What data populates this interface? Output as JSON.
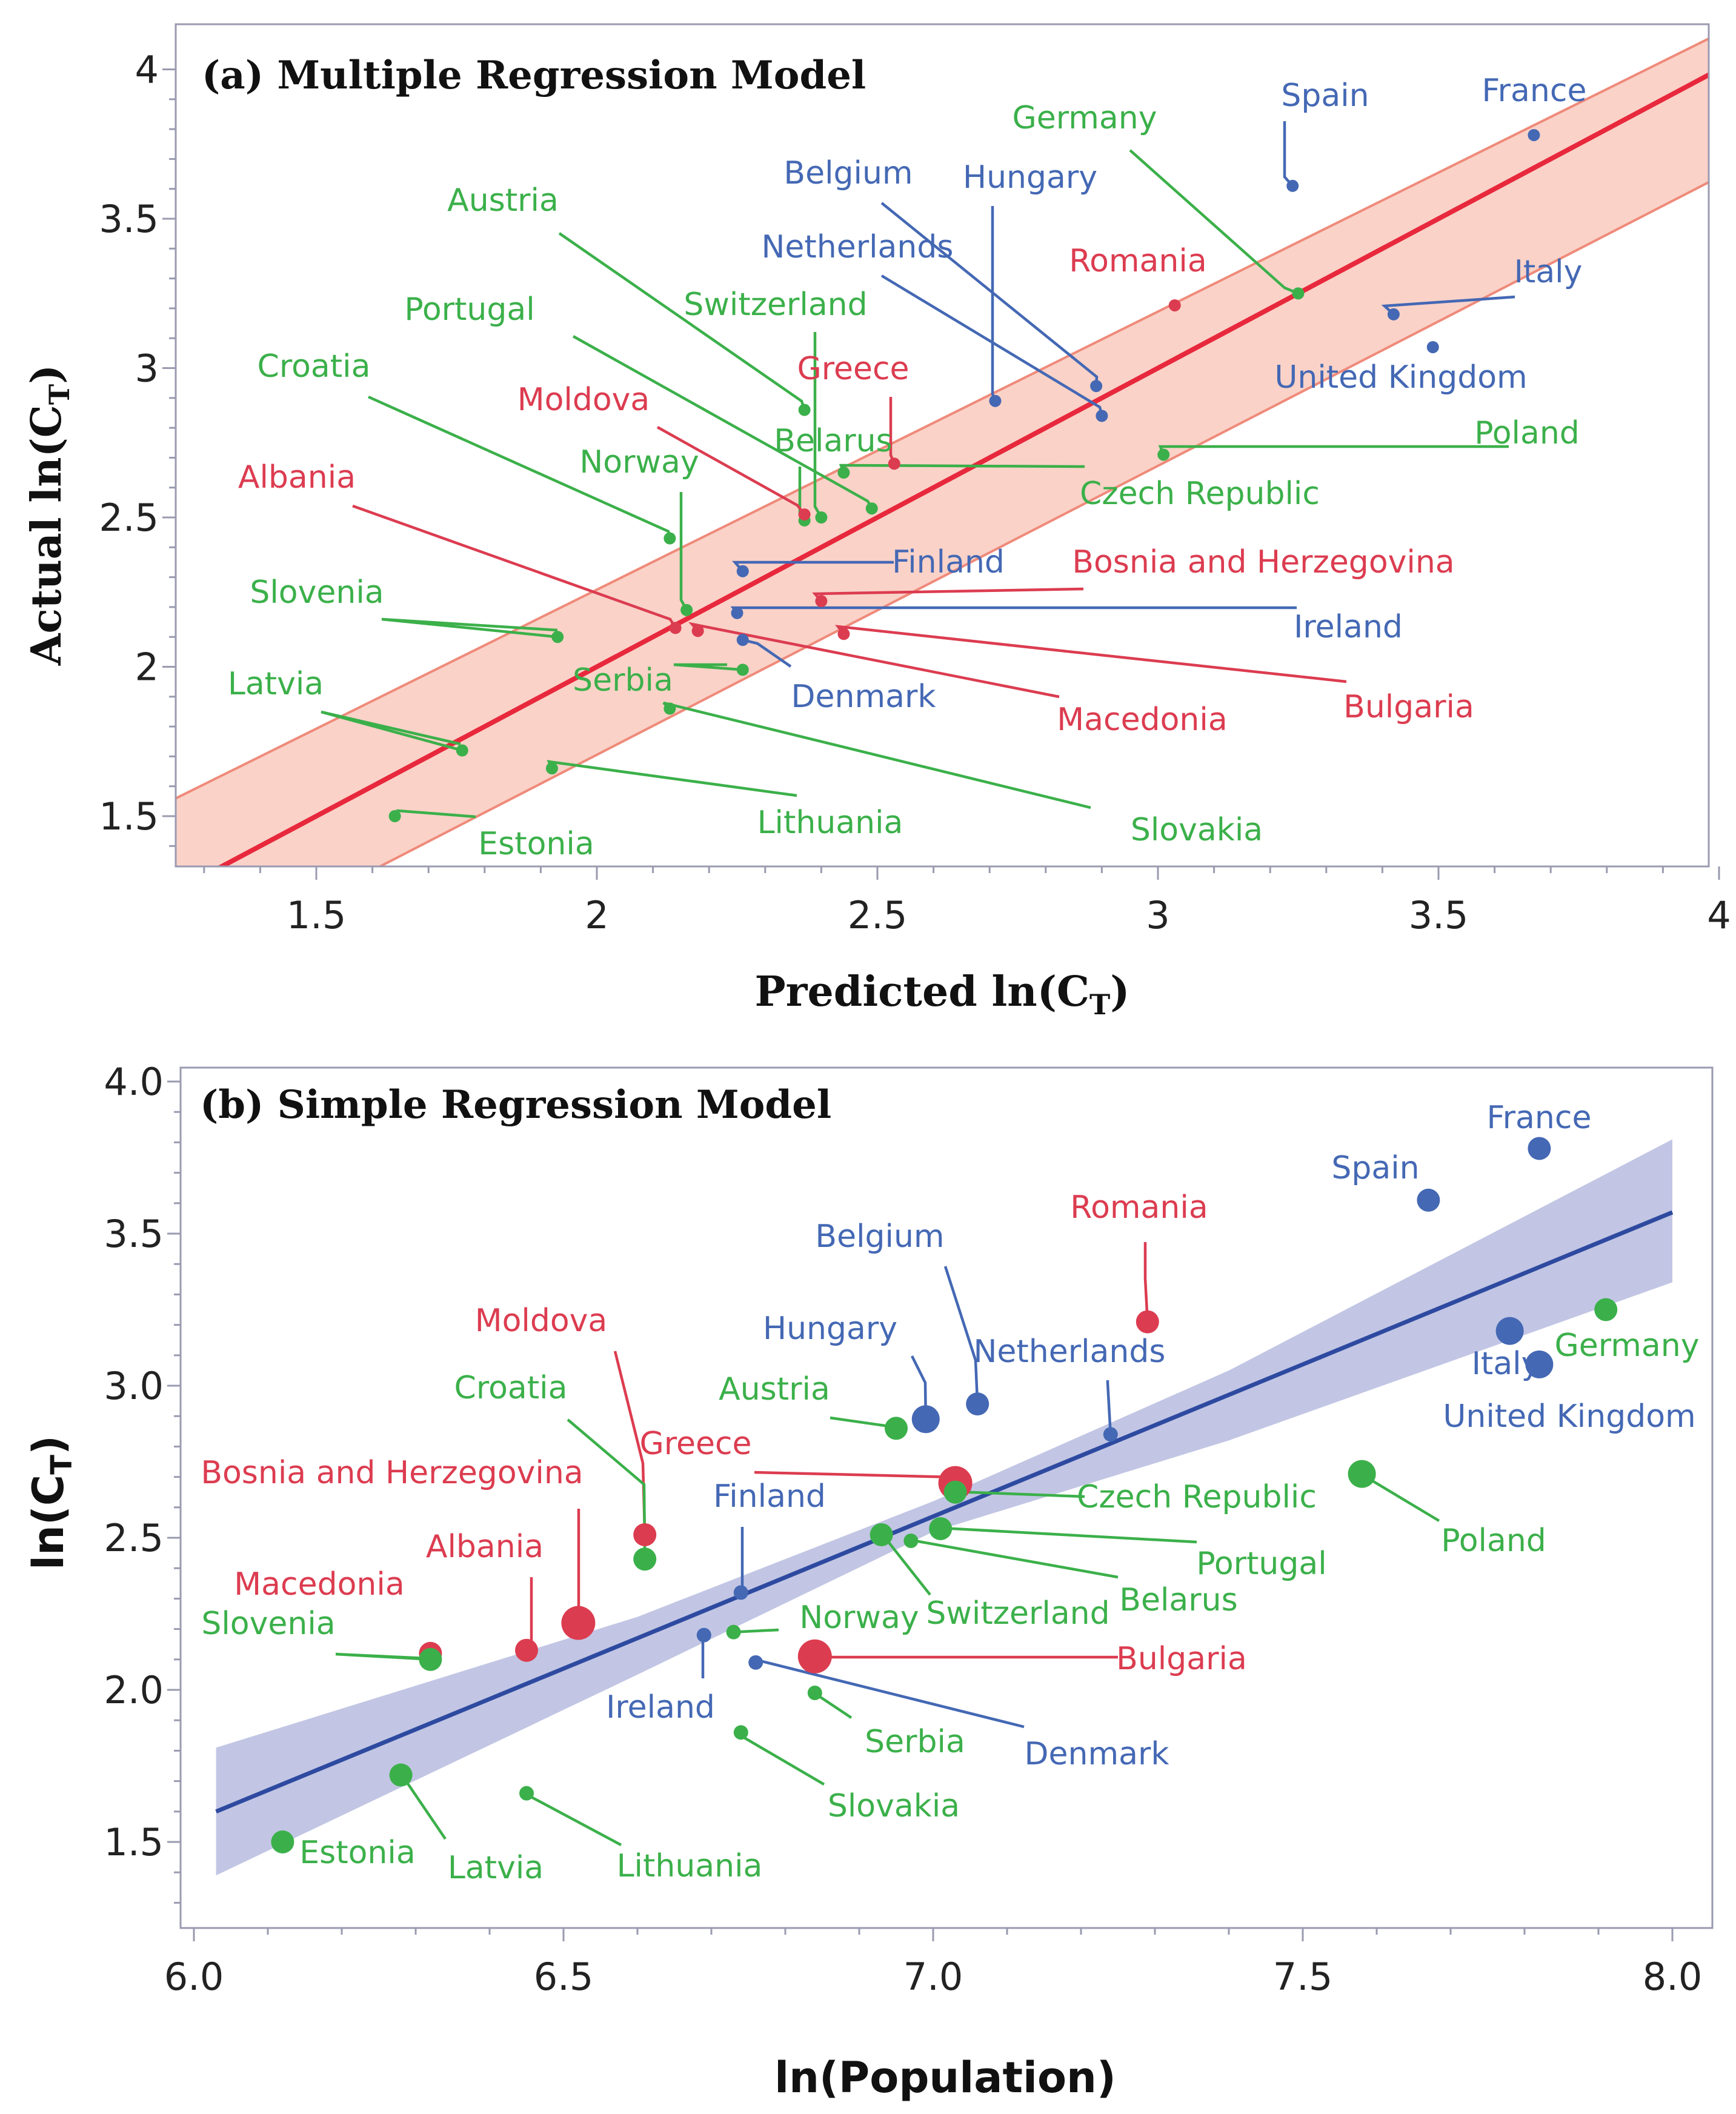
{
  "colors": {
    "blue": "#4468b4",
    "green": "#3bb04a",
    "red": "#dc3c50",
    "fit_a": "#e8283c",
    "band_a_fill": "#fad2c8",
    "band_a_edge": "#ef8a7a",
    "fit_b": "#2e4aa0",
    "band_b_fill": "#c2c6e4"
  },
  "chart_data": [
    {
      "type": "scatter",
      "title": "(a) Multiple Regression Model",
      "xlabel": "Predicted ln(CT)",
      "ylabel": "Actual ln(CT)",
      "xlim": [
        1.25,
        4.0
      ],
      "ylim": [
        1.3,
        4.1
      ],
      "xticks": [
        "1.5",
        "2",
        "2.5",
        "3",
        "3.5",
        "4"
      ],
      "yticks": [
        "1.5",
        "2",
        "2.5",
        "3",
        "3.5",
        "4"
      ],
      "fit": {
        "intercept": 0.0,
        "slope": 1.0
      },
      "band": {
        "upper": [
          [
            1.25,
            1.56
          ],
          [
            4.0,
            4.12
          ]
        ],
        "lower": [
          [
            1.25,
            0.98
          ],
          [
            4.0,
            3.64
          ]
        ]
      },
      "points": [
        {
          "name": "France",
          "color": "blue",
          "x": 3.67,
          "y": 3.78
        },
        {
          "name": "Spain",
          "color": "blue",
          "x": 3.24,
          "y": 3.61
        },
        {
          "name": "Germany",
          "color": "green",
          "x": 3.25,
          "y": 3.25
        },
        {
          "name": "Belgium",
          "color": "blue",
          "x": 2.89,
          "y": 2.94
        },
        {
          "name": "Hungary",
          "color": "blue",
          "x": 2.71,
          "y": 2.89
        },
        {
          "name": "Netherlands",
          "color": "blue",
          "x": 2.9,
          "y": 2.84
        },
        {
          "name": "Romania",
          "color": "red",
          "x": 3.03,
          "y": 3.21
        },
        {
          "name": "Italy",
          "color": "blue",
          "x": 3.42,
          "y": 3.18
        },
        {
          "name": "United Kingdom",
          "color": "blue",
          "x": 3.49,
          "y": 3.07
        },
        {
          "name": "Poland",
          "color": "green",
          "x": 3.01,
          "y": 2.71
        },
        {
          "name": "Austria",
          "color": "green",
          "x": 2.37,
          "y": 2.86
        },
        {
          "name": "Switzerland",
          "color": "green",
          "x": 2.4,
          "y": 2.5
        },
        {
          "name": "Portugal",
          "color": "green",
          "x": 2.49,
          "y": 2.53
        },
        {
          "name": "Greece",
          "color": "red",
          "x": 2.53,
          "y": 2.68
        },
        {
          "name": "Belarus",
          "color": "green",
          "x": 2.37,
          "y": 2.49
        },
        {
          "name": "Moldova",
          "color": "red",
          "x": 2.37,
          "y": 2.51
        },
        {
          "name": "Czech Republic",
          "color": "green",
          "x": 2.44,
          "y": 2.65
        },
        {
          "name": "Croatia",
          "color": "green",
          "x": 2.13,
          "y": 2.43
        },
        {
          "name": "Norway",
          "color": "green",
          "x": 2.16,
          "y": 2.19
        },
        {
          "name": "Albania",
          "color": "red",
          "x": 2.14,
          "y": 2.13
        },
        {
          "name": "Macedonia",
          "color": "red",
          "x": 2.18,
          "y": 2.12
        },
        {
          "name": "Finland",
          "color": "blue",
          "x": 2.26,
          "y": 2.32
        },
        {
          "name": "Bosnia and Herzegovina",
          "color": "red",
          "x": 2.4,
          "y": 2.22
        },
        {
          "name": "Ireland",
          "color": "blue",
          "x": 2.25,
          "y": 2.18
        },
        {
          "name": "Bulgaria",
          "color": "red",
          "x": 2.44,
          "y": 2.11
        },
        {
          "name": "Denmark",
          "color": "blue",
          "x": 2.26,
          "y": 2.09
        },
        {
          "name": "Serbia",
          "color": "green",
          "x": 2.26,
          "y": 1.99
        },
        {
          "name": "Slovenia",
          "color": "green",
          "x": 1.93,
          "y": 2.1
        },
        {
          "name": "Latvia",
          "color": "green",
          "x": 1.76,
          "y": 1.72
        },
        {
          "name": "Slovakia",
          "color": "green",
          "x": 2.13,
          "y": 1.86
        },
        {
          "name": "Lithuania",
          "color": "green",
          "x": 1.92,
          "y": 1.66
        },
        {
          "name": "Estonia",
          "color": "green",
          "x": 1.64,
          "y": 1.5
        }
      ]
    },
    {
      "type": "scatter",
      "title": "(b) Simple Regression Model",
      "xlabel": "ln(Population)",
      "ylabel": "ln(CT)",
      "xlim": [
        5.95,
        8.05
      ],
      "ylim": [
        1.15,
        4.05
      ],
      "xticks": [
        "6.0",
        "6.5",
        "7.0",
        "7.5",
        "8.0"
      ],
      "yticks": [
        "1.5",
        "2.0",
        "2.5",
        "3.0",
        "3.5",
        "4.0"
      ],
      "fit": {
        "x": [
          6.03,
          8.0
        ],
        "y": [
          1.6,
          3.57
        ]
      },
      "band": {
        "upper": [
          [
            6.03,
            1.81
          ],
          [
            6.6,
            2.24
          ],
          [
            7.0,
            2.62
          ],
          [
            7.4,
            3.05
          ],
          [
            8.0,
            3.81
          ]
        ],
        "lower": [
          [
            6.03,
            1.39
          ],
          [
            6.6,
            2.05
          ],
          [
            7.0,
            2.52
          ],
          [
            7.4,
            2.82
          ],
          [
            8.0,
            3.34
          ]
        ]
      },
      "points": [
        {
          "name": "France",
          "color": "blue",
          "x": 7.82,
          "y": 3.78,
          "size": "m"
        },
        {
          "name": "Spain",
          "color": "blue",
          "x": 7.67,
          "y": 3.61,
          "size": "m"
        },
        {
          "name": "Romania",
          "color": "red",
          "x": 7.29,
          "y": 3.21,
          "size": "m"
        },
        {
          "name": "Germany",
          "color": "green",
          "x": 7.91,
          "y": 3.25,
          "size": "m"
        },
        {
          "name": "Italy",
          "color": "blue",
          "x": 7.78,
          "y": 3.18,
          "size": "l"
        },
        {
          "name": "United Kingdom",
          "color": "blue",
          "x": 7.82,
          "y": 3.07,
          "size": "l"
        },
        {
          "name": "Belgium",
          "color": "blue",
          "x": 7.06,
          "y": 2.94,
          "size": "m"
        },
        {
          "name": "Hungary",
          "color": "blue",
          "x": 6.99,
          "y": 2.89,
          "size": "l"
        },
        {
          "name": "Netherlands",
          "color": "blue",
          "x": 7.24,
          "y": 2.84,
          "size": "s"
        },
        {
          "name": "Austria",
          "color": "green",
          "x": 6.95,
          "y": 2.86,
          "size": "m"
        },
        {
          "name": "Greece",
          "color": "red",
          "x": 7.03,
          "y": 2.68,
          "size": "xl"
        },
        {
          "name": "Poland",
          "color": "green",
          "x": 7.58,
          "y": 2.71,
          "size": "l"
        },
        {
          "name": "Czech Republic",
          "color": "green",
          "x": 7.03,
          "y": 2.65,
          "size": "m"
        },
        {
          "name": "Portugal",
          "color": "green",
          "x": 7.01,
          "y": 2.53,
          "size": "m"
        },
        {
          "name": "Belarus",
          "color": "green",
          "x": 6.97,
          "y": 2.49,
          "size": "s"
        },
        {
          "name": "Switzerland",
          "color": "green",
          "x": 6.93,
          "y": 2.51,
          "size": "m"
        },
        {
          "name": "Moldova",
          "color": "red",
          "x": 6.61,
          "y": 2.51,
          "size": "m"
        },
        {
          "name": "Croatia",
          "color": "green",
          "x": 6.61,
          "y": 2.43,
          "size": "m"
        },
        {
          "name": "Finland",
          "color": "blue",
          "x": 6.74,
          "y": 2.32,
          "size": "s"
        },
        {
          "name": "Bosnia and Herzegovina",
          "color": "red",
          "x": 6.52,
          "y": 2.22,
          "size": "xl"
        },
        {
          "name": "Albania",
          "color": "red",
          "x": 6.45,
          "y": 2.13,
          "size": "m"
        },
        {
          "name": "Macedonia",
          "color": "red",
          "x": 6.32,
          "y": 2.12,
          "size": "m"
        },
        {
          "name": "Slovenia",
          "color": "green",
          "x": 6.32,
          "y": 2.1,
          "size": "m"
        },
        {
          "name": "Norway",
          "color": "green",
          "x": 6.73,
          "y": 2.19,
          "size": "s"
        },
        {
          "name": "Ireland",
          "color": "blue",
          "x": 6.69,
          "y": 2.18,
          "size": "s"
        },
        {
          "name": "Denmark",
          "color": "blue",
          "x": 6.76,
          "y": 2.09,
          "size": "s"
        },
        {
          "name": "Bulgaria",
          "color": "red",
          "x": 6.84,
          "y": 2.11,
          "size": "xl"
        },
        {
          "name": "Serbia",
          "color": "green",
          "x": 6.84,
          "y": 1.99,
          "size": "s"
        },
        {
          "name": "Slovakia",
          "color": "green",
          "x": 6.74,
          "y": 1.86,
          "size": "s"
        },
        {
          "name": "Latvia",
          "color": "green",
          "x": 6.28,
          "y": 1.72,
          "size": "m"
        },
        {
          "name": "Lithuania",
          "color": "green",
          "x": 6.45,
          "y": 1.66,
          "size": "s"
        },
        {
          "name": "Estonia",
          "color": "green",
          "x": 6.12,
          "y": 1.5,
          "size": "m"
        }
      ]
    }
  ]
}
